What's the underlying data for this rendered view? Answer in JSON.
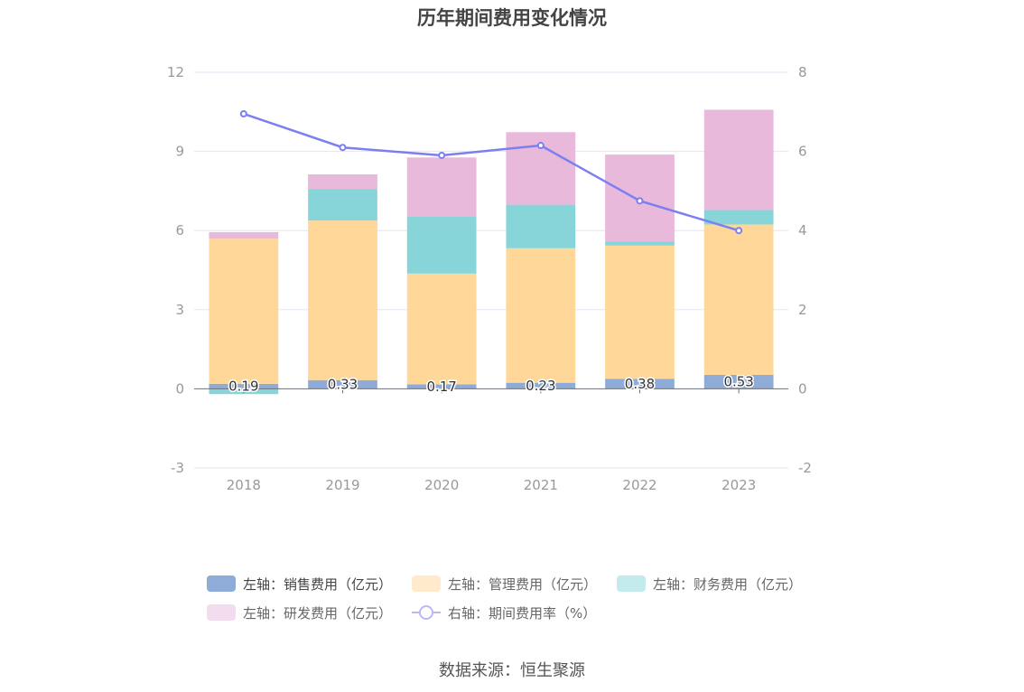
{
  "chart_data": {
    "type": "bar",
    "title": "历年期间费用变化情况",
    "categories": [
      "2018",
      "2019",
      "2020",
      "2021",
      "2022",
      "2023"
    ],
    "stacked": true,
    "series": [
      {
        "name": "左轴：销售费用（亿元）",
        "axis": "left",
        "type": "bar",
        "color": "#8facd9",
        "values": [
          0.19,
          0.33,
          0.17,
          0.23,
          0.38,
          0.53
        ],
        "labels": [
          "0.19",
          "0.33",
          "0.17",
          "0.23",
          "0.38",
          "0.53"
        ]
      },
      {
        "name": "左轴：管理费用（亿元）",
        "axis": "left",
        "type": "bar",
        "color": "#ffd899",
        "values": [
          5.5,
          6.05,
          4.2,
          5.1,
          5.05,
          5.7
        ]
      },
      {
        "name": "左轴：财务费用（亿元）",
        "axis": "left",
        "type": "bar",
        "color": "#88d5d9",
        "values": [
          -0.2,
          1.2,
          2.15,
          1.65,
          0.15,
          0.55
        ]
      },
      {
        "name": "左轴：研发费用（亿元）",
        "axis": "left",
        "type": "bar",
        "color": "#e8b9db",
        "values": [
          0.25,
          0.55,
          2.25,
          2.75,
          3.3,
          3.8
        ]
      },
      {
        "name": "右轴：期间费用率（%）",
        "axis": "right",
        "type": "line",
        "color": "#7b7ff0",
        "values": [
          6.95,
          6.1,
          5.9,
          6.15,
          4.75,
          4.0
        ]
      }
    ],
    "y_left": {
      "ylim": [
        -3,
        12
      ],
      "ticks": [
        -3,
        0,
        3,
        6,
        9,
        12
      ]
    },
    "y_right": {
      "ylim": [
        -2,
        8
      ],
      "ticks": [
        -2,
        0,
        2,
        4,
        6,
        8
      ]
    },
    "grid": true,
    "legend_position": "bottom",
    "legend_rows": [
      [
        0,
        1,
        2
      ],
      [
        3,
        4
      ]
    ],
    "source": "数据来源：恒生聚源"
  }
}
